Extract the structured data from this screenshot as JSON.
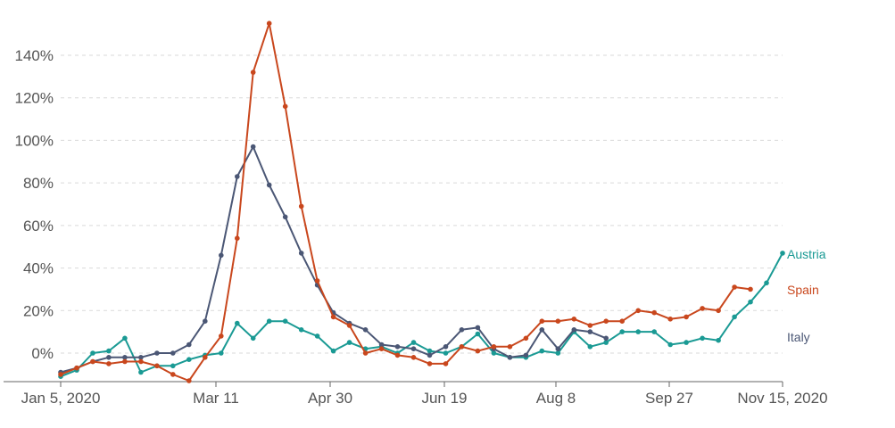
{
  "chart_data": {
    "type": "line",
    "title": "",
    "xlabel": "",
    "ylabel": "",
    "yticks": [
      "0%",
      "20%",
      "40%",
      "60%",
      "80%",
      "100%",
      "120%",
      "140%"
    ],
    "ytick_values": [
      0,
      20,
      40,
      60,
      80,
      100,
      120,
      140
    ],
    "ylim": [
      -10,
      156
    ],
    "xticks": [
      "Jan 5, 2020",
      "Mar 11",
      "Apr 30",
      "Jun 19",
      "Aug 8",
      "Sep 27",
      "Nov 15, 2020"
    ],
    "grid": true,
    "legend": "inline-right",
    "series": [
      {
        "name": "Austria",
        "color": "#1a9a94",
        "points": [
          [
            "2020-01-05",
            -11
          ],
          [
            "2020-01-12",
            -8
          ],
          [
            "2020-01-19",
            0
          ],
          [
            "2020-01-26",
            1
          ],
          [
            "2020-02-02",
            7
          ],
          [
            "2020-02-09",
            -9
          ],
          [
            "2020-02-16",
            -6
          ],
          [
            "2020-02-23",
            -6
          ],
          [
            "2020-03-01",
            -3
          ],
          [
            "2020-03-08",
            -1
          ],
          [
            "2020-03-15",
            0
          ],
          [
            "2020-03-22",
            14
          ],
          [
            "2020-03-29",
            7
          ],
          [
            "2020-04-05",
            15
          ],
          [
            "2020-04-12",
            15
          ],
          [
            "2020-04-19",
            11
          ],
          [
            "2020-04-26",
            8
          ],
          [
            "2020-05-03",
            1
          ],
          [
            "2020-05-10",
            5
          ],
          [
            "2020-05-17",
            2
          ],
          [
            "2020-05-24",
            3
          ],
          [
            "2020-05-31",
            0
          ],
          [
            "2020-06-07",
            5
          ],
          [
            "2020-06-14",
            1
          ],
          [
            "2020-06-21",
            0
          ],
          [
            "2020-06-28",
            3
          ],
          [
            "2020-07-05",
            9
          ],
          [
            "2020-07-12",
            0
          ],
          [
            "2020-07-19",
            -2
          ],
          [
            "2020-07-26",
            -2
          ],
          [
            "2020-08-02",
            1
          ],
          [
            "2020-08-09",
            0
          ],
          [
            "2020-08-16",
            10
          ],
          [
            "2020-08-23",
            3
          ],
          [
            "2020-08-30",
            5
          ],
          [
            "2020-09-06",
            10
          ],
          [
            "2020-09-13",
            10
          ],
          [
            "2020-09-20",
            10
          ],
          [
            "2020-09-27",
            4
          ],
          [
            "2020-10-04",
            5
          ],
          [
            "2020-10-11",
            7
          ],
          [
            "2020-10-18",
            6
          ],
          [
            "2020-10-25",
            17
          ],
          [
            "2020-11-01",
            24
          ],
          [
            "2020-11-08",
            33
          ],
          [
            "2020-11-15",
            47
          ]
        ]
      },
      {
        "name": "Spain",
        "color": "#c9471d",
        "points": [
          [
            "2020-01-05",
            -10
          ],
          [
            "2020-01-12",
            -7
          ],
          [
            "2020-01-19",
            -4
          ],
          [
            "2020-01-26",
            -5
          ],
          [
            "2020-02-02",
            -4
          ],
          [
            "2020-02-09",
            -4
          ],
          [
            "2020-02-16",
            -6
          ],
          [
            "2020-02-23",
            -10
          ],
          [
            "2020-03-01",
            -13
          ],
          [
            "2020-03-08",
            -2
          ],
          [
            "2020-03-15",
            8
          ],
          [
            "2020-03-22",
            54
          ],
          [
            "2020-03-29",
            132
          ],
          [
            "2020-04-05",
            155
          ],
          [
            "2020-04-12",
            116
          ],
          [
            "2020-04-19",
            69
          ],
          [
            "2020-04-26",
            34
          ],
          [
            "2020-05-03",
            17
          ],
          [
            "2020-05-10",
            13
          ],
          [
            "2020-05-17",
            0
          ],
          [
            "2020-05-24",
            2
          ],
          [
            "2020-05-31",
            -1
          ],
          [
            "2020-06-07",
            -2
          ],
          [
            "2020-06-14",
            -5
          ],
          [
            "2020-06-21",
            -5
          ],
          [
            "2020-06-28",
            3
          ],
          [
            "2020-07-05",
            1
          ],
          [
            "2020-07-12",
            3
          ],
          [
            "2020-07-19",
            3
          ],
          [
            "2020-07-26",
            7
          ],
          [
            "2020-08-02",
            15
          ],
          [
            "2020-08-09",
            15
          ],
          [
            "2020-08-16",
            16
          ],
          [
            "2020-08-23",
            13
          ],
          [
            "2020-08-30",
            15
          ],
          [
            "2020-09-06",
            15
          ],
          [
            "2020-09-13",
            20
          ],
          [
            "2020-09-20",
            19
          ],
          [
            "2020-09-27",
            16
          ],
          [
            "2020-10-04",
            17
          ],
          [
            "2020-10-11",
            21
          ],
          [
            "2020-10-18",
            20
          ],
          [
            "2020-10-25",
            31
          ],
          [
            "2020-11-01",
            30
          ]
        ]
      },
      {
        "name": "Italy",
        "color": "#4b5775",
        "points": [
          [
            "2020-01-05",
            -9
          ],
          [
            "2020-01-12",
            -7
          ],
          [
            "2020-01-19",
            -4
          ],
          [
            "2020-01-26",
            -2
          ],
          [
            "2020-02-02",
            -2
          ],
          [
            "2020-02-09",
            -2
          ],
          [
            "2020-02-16",
            0
          ],
          [
            "2020-02-23",
            0
          ],
          [
            "2020-03-01",
            4
          ],
          [
            "2020-03-08",
            15
          ],
          [
            "2020-03-15",
            46
          ],
          [
            "2020-03-22",
            83
          ],
          [
            "2020-03-29",
            97
          ],
          [
            "2020-04-05",
            79
          ],
          [
            "2020-04-12",
            64
          ],
          [
            "2020-04-19",
            47
          ],
          [
            "2020-04-26",
            32
          ],
          [
            "2020-05-03",
            19
          ],
          [
            "2020-05-10",
            14
          ],
          [
            "2020-05-17",
            11
          ],
          [
            "2020-05-24",
            4
          ],
          [
            "2020-05-31",
            3
          ],
          [
            "2020-06-07",
            2
          ],
          [
            "2020-06-14",
            -1
          ],
          [
            "2020-06-21",
            3
          ],
          [
            "2020-06-28",
            11
          ],
          [
            "2020-07-05",
            12
          ],
          [
            "2020-07-12",
            2
          ],
          [
            "2020-07-19",
            -2
          ],
          [
            "2020-07-26",
            -1
          ],
          [
            "2020-08-02",
            11
          ],
          [
            "2020-08-09",
            2
          ],
          [
            "2020-08-16",
            11
          ],
          [
            "2020-08-23",
            10
          ],
          [
            "2020-08-30",
            7
          ]
        ]
      }
    ]
  }
}
